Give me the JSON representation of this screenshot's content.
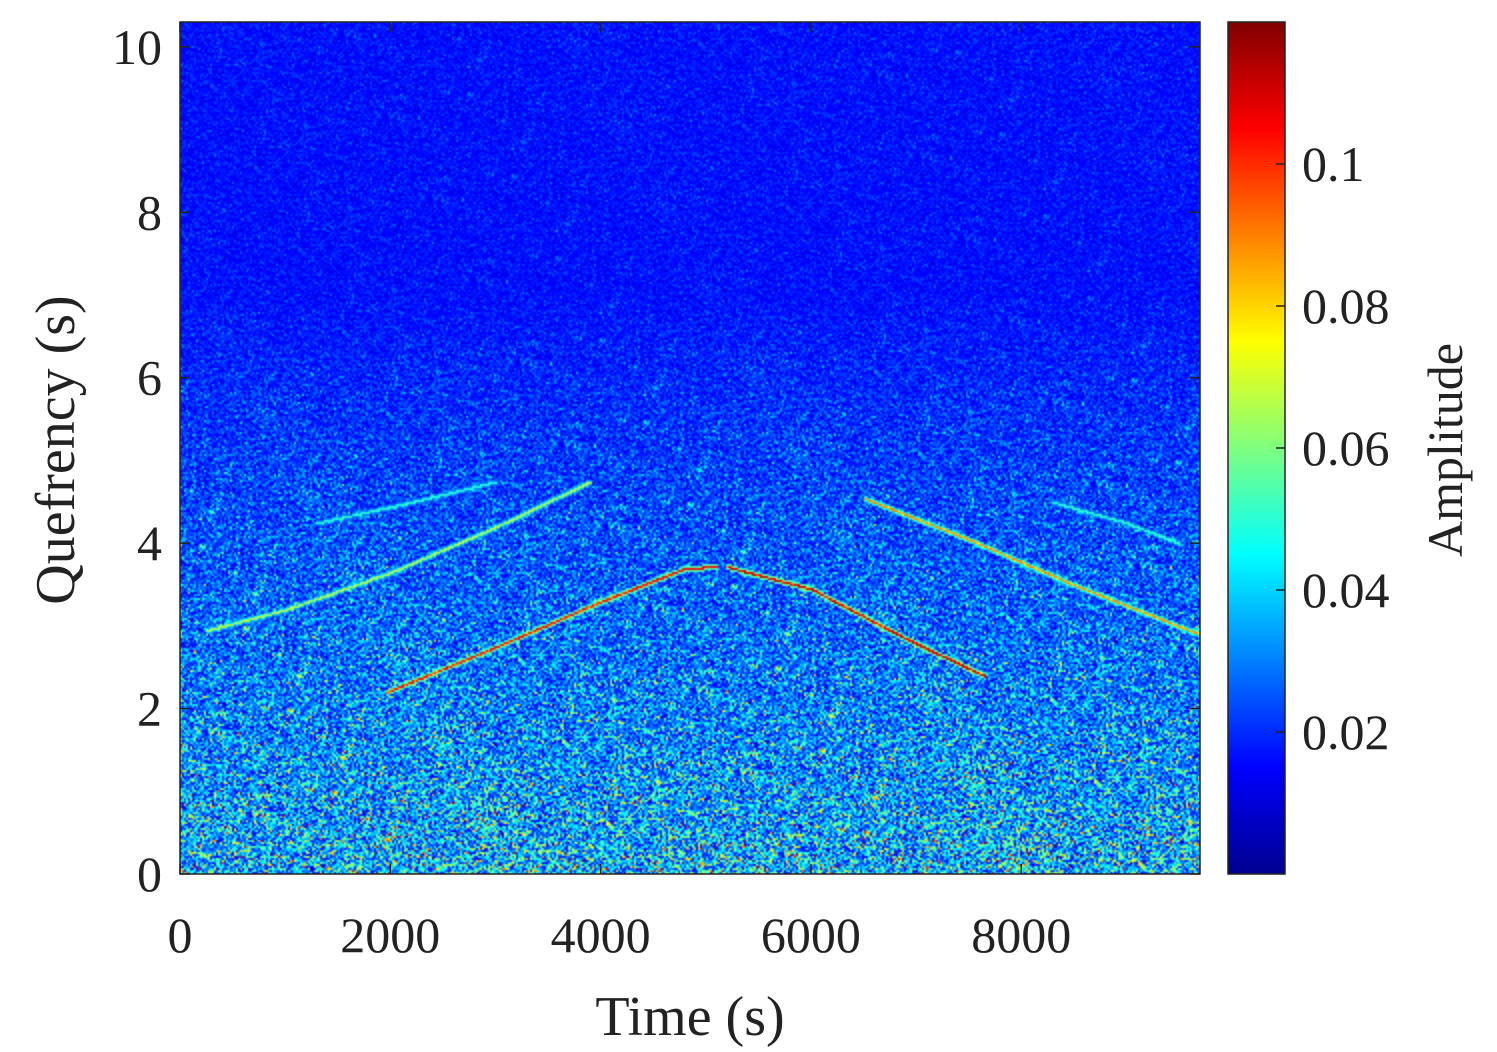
{
  "chart_data": {
    "type": "heatmap",
    "colormap": "jet",
    "xlabel": "Time (s)",
    "ylabel": "Quefrency (s)",
    "xlim": [
      0,
      9700
    ],
    "ylim": [
      0,
      10.3
    ],
    "xticks": [
      0,
      2000,
      4000,
      6000,
      8000
    ],
    "xtick_labels": [
      "0",
      "2000",
      "4000",
      "6000",
      "8000"
    ],
    "yticks": [
      0,
      2,
      4,
      6,
      8,
      10
    ],
    "ytick_labels": [
      "0",
      "2",
      "4",
      "6",
      "8",
      "10"
    ],
    "grid": false,
    "colorbar": {
      "label": "Amplitude",
      "range": [
        0,
        0.12
      ],
      "ticks": [
        0.02,
        0.04,
        0.06,
        0.08,
        0.1
      ],
      "tick_labels": [
        "0.02",
        "0.04",
        "0.06",
        "0.08",
        "0.1"
      ]
    },
    "background": {
      "description": "noise amplitude decreasing with quefrency",
      "mean_amplitude_low_quefrency": 0.03,
      "mean_amplitude_high_quefrency": 0.005
    },
    "ridges": [
      {
        "name": "lower-left",
        "points": [
          [
            250,
            2.95
          ],
          [
            1000,
            3.2
          ],
          [
            2000,
            3.65
          ],
          [
            3000,
            4.2
          ],
          [
            3900,
            4.75
          ]
        ],
        "amplitude": 0.05
      },
      {
        "name": "upper-left-faint",
        "points": [
          [
            1300,
            4.25
          ],
          [
            2200,
            4.5
          ],
          [
            3000,
            4.75
          ]
        ],
        "amplitude": 0.035
      },
      {
        "name": "central-rising",
        "points": [
          [
            1950,
            2.2
          ],
          [
            3000,
            2.75
          ],
          [
            4000,
            3.3
          ],
          [
            4800,
            3.7
          ],
          [
            5100,
            3.72
          ]
        ],
        "amplitude": 0.085
      },
      {
        "name": "central-falling",
        "points": [
          [
            5200,
            3.72
          ],
          [
            6000,
            3.45
          ],
          [
            6900,
            2.85
          ],
          [
            7650,
            2.4
          ]
        ],
        "amplitude": 0.09
      },
      {
        "name": "right-falling",
        "points": [
          [
            6500,
            4.55
          ],
          [
            7500,
            4.05
          ],
          [
            8500,
            3.5
          ],
          [
            9700,
            2.9
          ]
        ],
        "amplitude": 0.07
      },
      {
        "name": "upper-right-faint",
        "points": [
          [
            8300,
            4.5
          ],
          [
            9000,
            4.25
          ],
          [
            9500,
            4.0
          ]
        ],
        "amplitude": 0.035
      }
    ]
  }
}
